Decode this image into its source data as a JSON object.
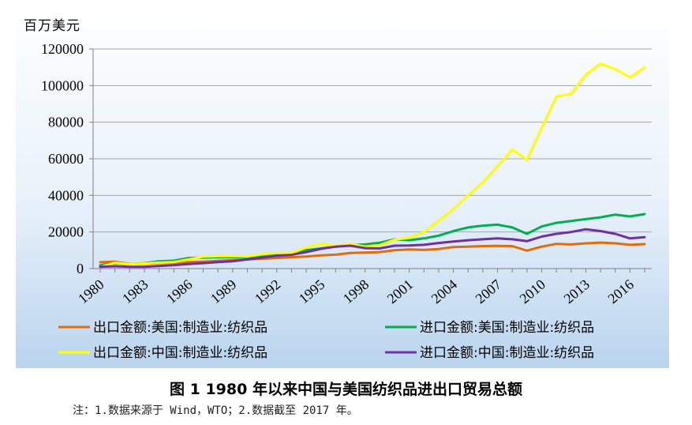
{
  "chart_data": {
    "type": "line",
    "unit_label": "百万美元",
    "x": [
      1980,
      1981,
      1982,
      1983,
      1984,
      1985,
      1986,
      1987,
      1988,
      1989,
      1990,
      1991,
      1992,
      1993,
      1994,
      1995,
      1996,
      1997,
      1998,
      1999,
      2000,
      2001,
      2002,
      2003,
      2004,
      2005,
      2006,
      2007,
      2008,
      2009,
      2010,
      2011,
      2012,
      2013,
      2014,
      2015,
      2016,
      2017
    ],
    "x_ticks": [
      "1980",
      "1983",
      "1986",
      "1989",
      "1992",
      "1995",
      "1998",
      "2001",
      "2004",
      "2007",
      "2010",
      "2013",
      "2016"
    ],
    "ylim": [
      0,
      120000
    ],
    "y_ticks": [
      "0",
      "20000",
      "40000",
      "60000",
      "80000",
      "100000",
      "120000"
    ],
    "grid": true,
    "legend_position": "bottom",
    "series": [
      {
        "name": "出口金额:美国:制造业:纺织品",
        "color": "#e36c09",
        "values": [
          3500,
          3800,
          2600,
          2700,
          3000,
          3200,
          3500,
          3800,
          4200,
          4600,
          5000,
          5400,
          5800,
          6200,
          6600,
          7200,
          7600,
          8500,
          8700,
          9000,
          10000,
          10500,
          10200,
          10700,
          11800,
          12000,
          12300,
          12400,
          12300,
          9800,
          12000,
          13500,
          13200,
          13800,
          14200,
          13800,
          13000,
          13400
        ]
      },
      {
        "name": "进口金额:美国:制造业:纺织品",
        "color": "#00b050",
        "values": [
          1800,
          3000,
          2500,
          3000,
          4000,
          4300,
          5800,
          6000,
          6200,
          6200,
          6400,
          7000,
          8000,
          8200,
          10000,
          11000,
          12000,
          12800,
          13200,
          14100,
          16000,
          15500,
          16500,
          18000,
          20500,
          22500,
          23500,
          24000,
          22500,
          19000,
          23000,
          25000,
          26000,
          27000,
          28000,
          29500,
          28500,
          29800
        ]
      },
      {
        "name": "出口金额:中国:制造业:纺织品",
        "color": "#ffff00",
        "values": [
          800,
          3200,
          2500,
          2800,
          3300,
          3600,
          5000,
          6500,
          6800,
          6800,
          6700,
          7800,
          8500,
          8500,
          11500,
          13500,
          12500,
          13500,
          12000,
          12800,
          15800,
          16800,
          20000,
          26000,
          32500,
          40000,
          47000,
          56000,
          65000,
          59500,
          77000,
          94000,
          95500,
          106000,
          112000,
          109000,
          104500,
          110000
        ]
      },
      {
        "name": "进口金额:中国:制造业:纺织品",
        "color": "#7030a0",
        "values": [
          1000,
          1300,
          1000,
          1000,
          1400,
          1900,
          2500,
          3000,
          3600,
          4000,
          5000,
          6000,
          7000,
          7500,
          9000,
          10800,
          12000,
          12500,
          11200,
          11000,
          12500,
          12600,
          13000,
          14000,
          14800,
          15500,
          16000,
          16500,
          16000,
          15000,
          17500,
          19000,
          20000,
          21500,
          20500,
          19000,
          16500,
          17200
        ]
      }
    ]
  },
  "caption": "图 1    1980 年以来中国与美国纺织品进出口贸易总额",
  "note": "注：1.数据来源于 Wind，WTO；2.数据截至 2017 年。",
  "colors": {
    "background_gradient_top": "#ffffff",
    "background_gradient_bottom": "#b9d4ee",
    "grid": "#a6a6a6"
  }
}
